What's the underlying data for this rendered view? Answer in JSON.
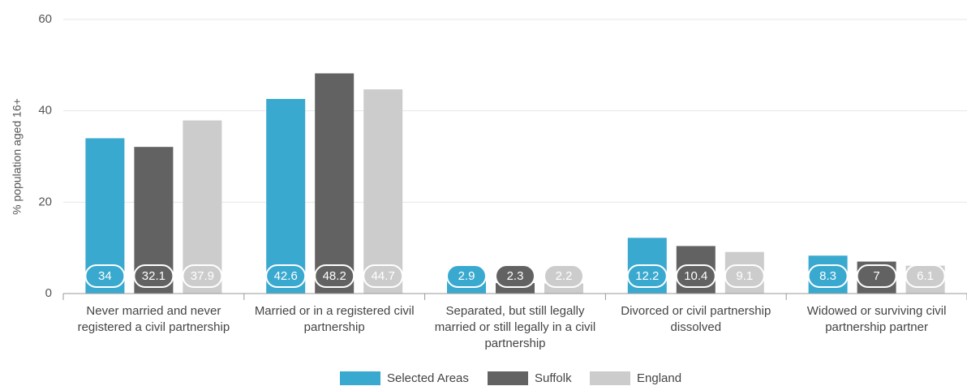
{
  "chart_data": {
    "type": "bar",
    "y_label": "% population aged 16+",
    "categories": [
      "Never married and never registered a civil partnership",
      "Married or in a registered civil partnership",
      "Separated, but still legally married or still legally in a civil partnership",
      "Divorced or civil partnership dissolved",
      "Widowed or surviving civil partnership partner"
    ],
    "series": [
      {
        "name": "Selected Areas",
        "color": "#3aa9cf",
        "values": [
          34,
          42.6,
          2.9,
          12.2,
          8.3
        ]
      },
      {
        "name": "Suffolk",
        "color": "#626262",
        "values": [
          32.1,
          48.2,
          2.3,
          10.4,
          7
        ]
      },
      {
        "name": "England",
        "color": "#cccccc",
        "values": [
          37.9,
          44.7,
          2.2,
          9.1,
          6.1
        ]
      }
    ],
    "ylim": [
      0,
      60
    ],
    "yticks": [
      0,
      20,
      40,
      60
    ],
    "grid": true,
    "legend": "bottom"
  }
}
